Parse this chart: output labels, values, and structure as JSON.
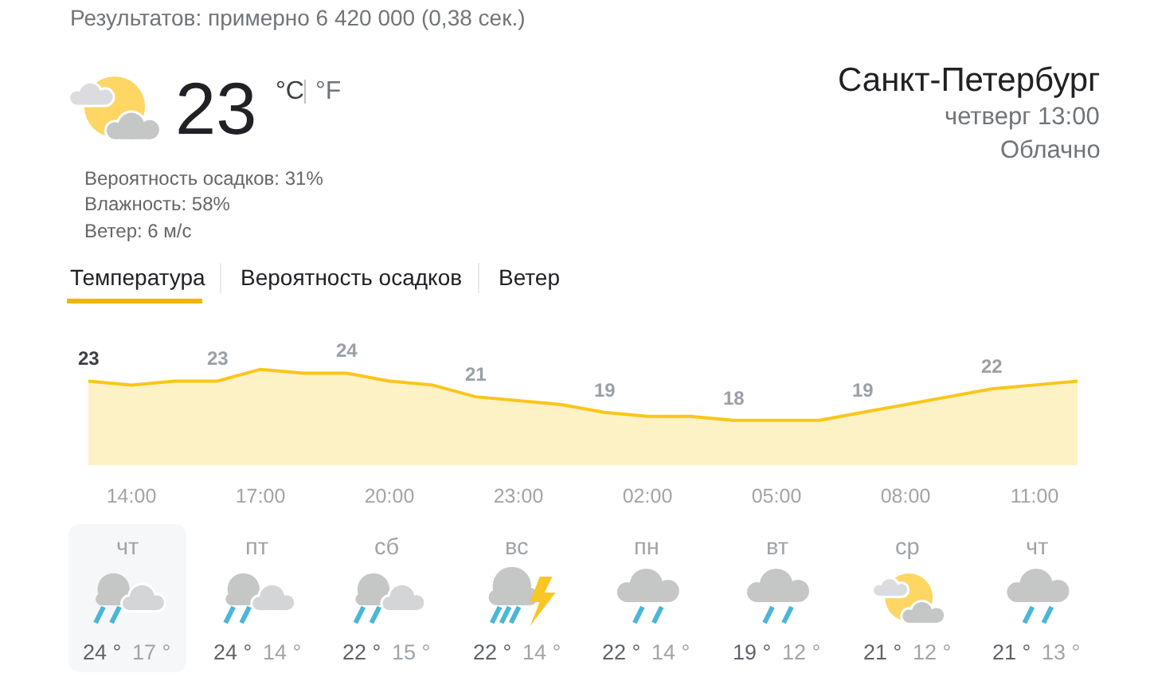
{
  "chart_data": [
    {
      "type": "other",
      "title": "Санкт-Петербург",
      "subtitle": "четверг 13:00",
      "annotations": [
        "Результатов: примерно 6 420 000 (0,38 сек.)",
        "23",
        "°C",
        "°F",
        "Вероятность осадков: 31%",
        "Влажность: 58%",
        "Ветер: 6 м/с",
        "Облачно",
        "Температура",
        "Вероятность осадков",
        "Ветер"
      ]
    },
    {
      "type": "area",
      "categories": [
        null,
        "14:00",
        null,
        null,
        "17:00",
        null,
        null,
        "20:00",
        null,
        null,
        "23:00",
        null,
        null,
        "02:00",
        null,
        null,
        "05:00",
        null,
        null,
        "08:00",
        null,
        null,
        "11:00",
        null
      ],
      "values": [
        23,
        22.5,
        23,
        23,
        24.5,
        24,
        24,
        23,
        22.5,
        21,
        20.5,
        20,
        19,
        18.5,
        18.5,
        18,
        18,
        18,
        19,
        20,
        21,
        22,
        22.5,
        23
      ],
      "value_labels": [
        "23",
        null,
        null,
        "23",
        null,
        null,
        "24",
        null,
        null,
        "21",
        null,
        null,
        "19",
        null,
        null,
        "18",
        null,
        null,
        "19",
        null,
        null,
        "22",
        null,
        null
      ],
      "color": "#f9c61a",
      "tick_labels": "x"
    },
    {
      "type": "other",
      "annotations": [
        "чт",
        "24 °",
        "17 °",
        "пт",
        "24 °",
        "14 °",
        "сб",
        "22 °",
        "15 °",
        "вс",
        "22 °",
        "14 °",
        "пн",
        "22 °",
        "14 °",
        "вт",
        "19 °",
        "12 °",
        "ср",
        "21 °",
        "12 °",
        "чт",
        "21 °",
        "13 °"
      ]
    }
  ]
}
